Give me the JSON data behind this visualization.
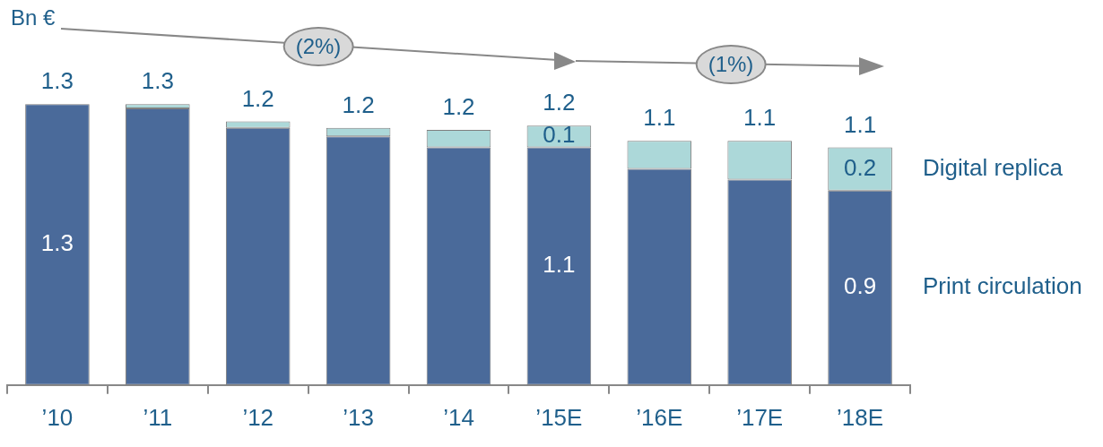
{
  "chart_data": {
    "type": "bar",
    "stacked": true,
    "categories": [
      "’10",
      "’11",
      "’12",
      "’13",
      "’14",
      "’15E",
      "’16E",
      "’17E",
      "’18E"
    ],
    "series": [
      {
        "name": "Print circulation",
        "color": "#4a6a9a",
        "values": [
          1.3,
          1.28,
          1.19,
          1.15,
          1.1,
          1.1,
          1.0,
          0.95,
          0.9
        ],
        "value_labels": [
          "1.3",
          null,
          null,
          null,
          null,
          "1.1",
          null,
          null,
          "0.9"
        ]
      },
      {
        "name": "Digital replica",
        "color": "#acd8d9",
        "values": [
          0,
          0.02,
          0.03,
          0.04,
          0.08,
          0.1,
          0.13,
          0.18,
          0.2
        ],
        "value_labels": [
          null,
          null,
          null,
          null,
          null,
          "0.1",
          null,
          null,
          "0.2"
        ]
      }
    ],
    "totals": [
      "1.3",
      "1.3",
      "1.2",
      "1.2",
      "1.2",
      "1.2",
      "1.1",
      "1.1",
      "1.1"
    ],
    "annotations": [
      "Bn €",
      "(2%)",
      "(1%)"
    ],
    "grid": false,
    "legend": "right"
  }
}
